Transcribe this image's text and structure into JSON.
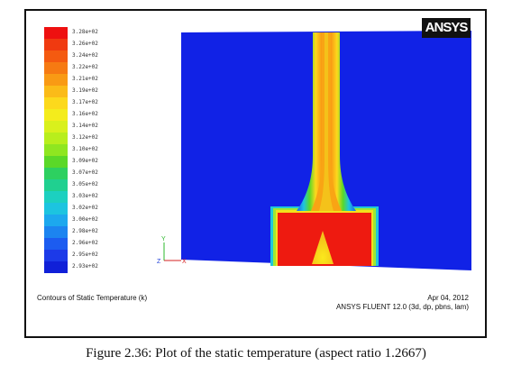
{
  "figure": {
    "caption": "Figure 2.36: Plot of the static temperature (aspect ratio 1.2667)",
    "plot_title": "Contours of Static Temperature (k)",
    "logo_text": "ANSYS",
    "date": "Apr 04, 2012",
    "solver": "ANSYS FLUENT 12.0 (3d, dp, pbns, lam)",
    "axes_triad": {
      "y": "Y",
      "z": "Z",
      "x": "X"
    }
  },
  "colorbar": {
    "levels": [
      {
        "label": "3.28e+02",
        "color": "#ee1010"
      },
      {
        "label": "3.26e+02",
        "color": "#f03a10"
      },
      {
        "label": "3.24e+02",
        "color": "#f45a10"
      },
      {
        "label": "3.22e+02",
        "color": "#f67a12"
      },
      {
        "label": "3.21e+02",
        "color": "#f99a14"
      },
      {
        "label": "3.19e+02",
        "color": "#fbbb18"
      },
      {
        "label": "3.17e+02",
        "color": "#fcd91c"
      },
      {
        "label": "3.16e+02",
        "color": "#f4ec1c"
      },
      {
        "label": "3.14e+02",
        "color": "#d9f01c"
      },
      {
        "label": "3.12e+02",
        "color": "#b8ee1c"
      },
      {
        "label": "3.10e+02",
        "color": "#8fe620"
      },
      {
        "label": "3.09e+02",
        "color": "#5ad828"
      },
      {
        "label": "3.07e+02",
        "color": "#2dd060"
      },
      {
        "label": "3.05e+02",
        "color": "#20d090"
      },
      {
        "label": "3.03e+02",
        "color": "#1cd0c0"
      },
      {
        "label": "3.02e+02",
        "color": "#1cc4e0"
      },
      {
        "label": "3.00e+02",
        "color": "#1ca8ee"
      },
      {
        "label": "2.98e+02",
        "color": "#1c84f0"
      },
      {
        "label": "2.96e+02",
        "color": "#1c5cf0"
      },
      {
        "label": "2.95e+02",
        "color": "#1c3ae8"
      },
      {
        "label": "2.93e+02",
        "color": "#1020d8"
      }
    ]
  }
}
